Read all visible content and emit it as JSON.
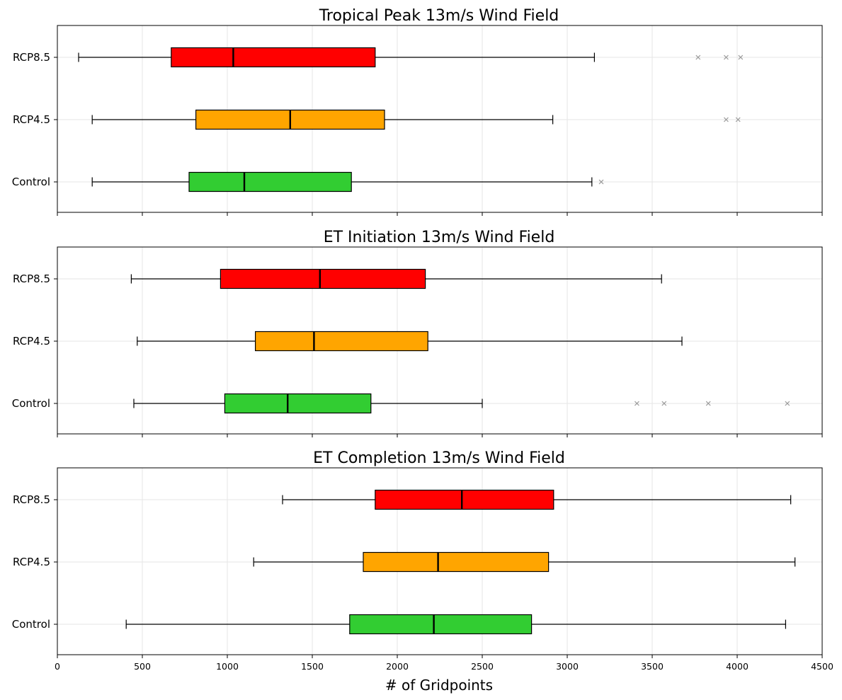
{
  "chart_data": {
    "type": "boxplot",
    "orientation": "horizontal",
    "shared_x": true,
    "xlim": [
      0,
      4500
    ],
    "xticks": [
      0,
      500,
      1000,
      1500,
      2000,
      2500,
      3000,
      3500,
      4000,
      4500
    ],
    "xlabel": "# of Gridpoints",
    "grid": true,
    "categories": [
      "RCP8.5",
      "RCP4.5",
      "Control"
    ],
    "colors": {
      "RCP8.5": "#ff0000",
      "RCP4.5": "#ffa500",
      "Control": "#32cd32"
    },
    "panels": [
      {
        "title": "Tropical Peak 13m/s Wind Field",
        "boxes": [
          {
            "category": "RCP8.5",
            "whisker_low": 125,
            "q1": 670,
            "median": 1035,
            "q3": 1870,
            "whisker_high": 3160,
            "outliers": [
              3770,
              3935,
              4020
            ]
          },
          {
            "category": "RCP4.5",
            "whisker_low": 205,
            "q1": 815,
            "median": 1370,
            "q3": 1925,
            "whisker_high": 2915,
            "outliers": [
              3935,
              4005
            ]
          },
          {
            "category": "Control",
            "whisker_low": 205,
            "q1": 775,
            "median": 1100,
            "q3": 1730,
            "whisker_high": 3145,
            "outliers": [
              3200
            ]
          }
        ]
      },
      {
        "title": "ET Initiation 13m/s Wind Field",
        "boxes": [
          {
            "category": "RCP8.5",
            "whisker_low": 435,
            "q1": 960,
            "median": 1545,
            "q3": 2165,
            "whisker_high": 3555,
            "outliers": []
          },
          {
            "category": "RCP4.5",
            "whisker_low": 470,
            "q1": 1165,
            "median": 1510,
            "q3": 2180,
            "whisker_high": 3675,
            "outliers": []
          },
          {
            "category": "Control",
            "whisker_low": 450,
            "q1": 985,
            "median": 1355,
            "q3": 1845,
            "whisker_high": 2500,
            "outliers": [
              3410,
              3570,
              3830,
              4295
            ]
          }
        ]
      },
      {
        "title": "ET Completion 13m/s Wind Field",
        "boxes": [
          {
            "category": "RCP8.5",
            "whisker_low": 1325,
            "q1": 1870,
            "median": 2380,
            "q3": 2920,
            "whisker_high": 4315,
            "outliers": []
          },
          {
            "category": "RCP4.5",
            "whisker_low": 1155,
            "q1": 1800,
            "median": 2240,
            "q3": 2890,
            "whisker_high": 4340,
            "outliers": []
          },
          {
            "category": "Control",
            "whisker_low": 405,
            "q1": 1720,
            "median": 2215,
            "q3": 2790,
            "whisker_high": 4285,
            "outliers": []
          }
        ]
      }
    ]
  }
}
